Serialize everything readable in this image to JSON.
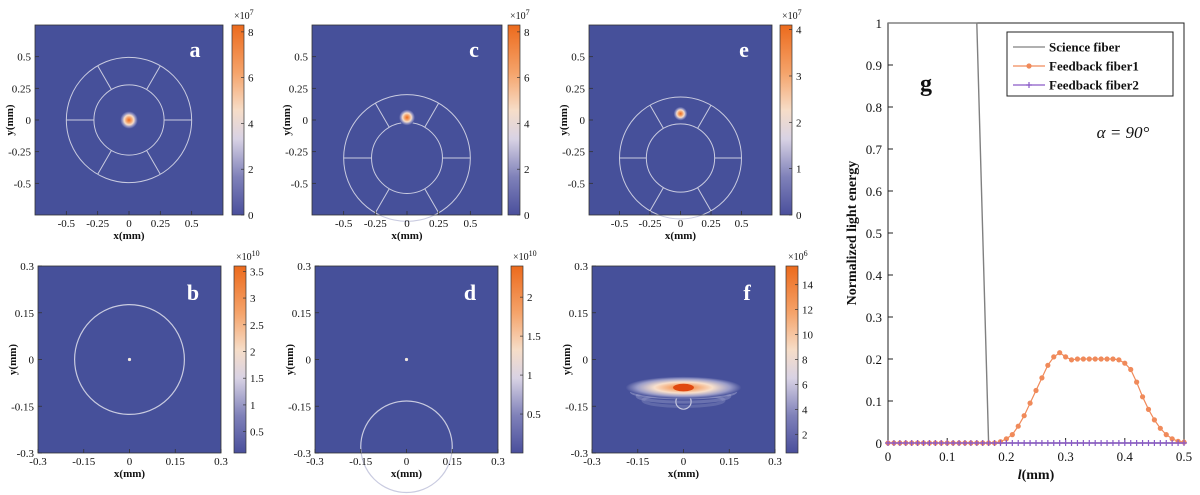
{
  "colors": {
    "background_dark": "#46509a",
    "ring": "#c9cbe0",
    "science": "#808080",
    "feedback1": "#f08a5a",
    "feedback2": "#8a5ac8"
  },
  "chart_data": [
    {
      "type": "heatmap",
      "panel": "a",
      "label": "a",
      "xlabel": "x(mm)",
      "ylabel": "y(mm)",
      "xlim": [
        -0.75,
        0.75
      ],
      "ylim": [
        -0.75,
        0.75
      ],
      "xticks": [
        -0.5,
        -0.25,
        0,
        0.25,
        0.5
      ],
      "xtick_labels": [
        "-0.5",
        "-0.25",
        "0",
        "0.25",
        "0.5"
      ],
      "yticks": [
        0.5,
        0.25,
        0,
        -0.25,
        -0.5
      ],
      "ytick_labels": [
        "0.5",
        "0.25",
        "0",
        "-0.25",
        "-0.5"
      ],
      "spot": {
        "x": 0,
        "y": 0,
        "radius": 0.05
      },
      "fiber_inner_radius": 0.28,
      "fiber_outer_radius": 0.5,
      "fiber_center": [
        0,
        0
      ],
      "colorbar": {
        "multiplier": "×10^7",
        "min": 0,
        "max": 8.3,
        "ticks": [
          0,
          2,
          4,
          6,
          8
        ],
        "tick_labels": [
          "0",
          "2",
          "4",
          "6",
          "8"
        ]
      }
    },
    {
      "type": "heatmap",
      "panel": "c",
      "label": "c",
      "xlabel": "x(mm)",
      "ylabel": "y(mm)",
      "xlim": [
        -0.75,
        0.75
      ],
      "ylim": [
        -0.75,
        0.75
      ],
      "xticks": [
        -0.5,
        -0.25,
        0,
        0.25,
        0.5
      ],
      "xtick_labels": [
        "-0.5",
        "-0.25",
        "0",
        "0.25",
        "0.5"
      ],
      "yticks": [
        0.5,
        0.25,
        0,
        -0.25,
        -0.5
      ],
      "ytick_labels": [
        "0.5",
        "0.25",
        "0",
        "-0.25",
        "-0.5"
      ],
      "spot": {
        "x": 0,
        "y": 0.02,
        "radius": 0.045
      },
      "fiber_inner_radius": 0.28,
      "fiber_outer_radius": 0.5,
      "fiber_center": [
        0,
        -0.3
      ],
      "colorbar": {
        "multiplier": "×10^7",
        "min": 0,
        "max": 8.3,
        "ticks": [
          0,
          2,
          4,
          6,
          8
        ],
        "tick_labels": [
          "0",
          "2",
          "4",
          "6",
          "8"
        ]
      }
    },
    {
      "type": "heatmap",
      "panel": "e",
      "label": "e",
      "xlabel": "x(mm)",
      "ylabel": "y(mm)",
      "xlim": [
        -0.75,
        0.75
      ],
      "ylim": [
        -0.75,
        0.75
      ],
      "xticks": [
        -0.5,
        -0.25,
        0,
        0.25,
        0.5
      ],
      "xtick_labels": [
        "-0.5",
        "-0.25",
        "0",
        "0.25",
        "0.5"
      ],
      "yticks": [
        0.5,
        0.25,
        0,
        -0.25,
        -0.5
      ],
      "ytick_labels": [
        "0.5",
        "0.25",
        "0",
        "-0.25",
        "-0.5"
      ],
      "spot": {
        "x": 0,
        "y": 0.05,
        "radius": 0.04
      },
      "fiber_inner_radius": 0.28,
      "fiber_outer_radius": 0.5,
      "fiber_center": [
        0,
        -0.3
      ],
      "colorbar": {
        "multiplier": "×10^7",
        "min": 0,
        "max": 4.1,
        "ticks": [
          0,
          1,
          2,
          3,
          4
        ],
        "tick_labels": [
          "0",
          "1",
          "2",
          "3",
          "4"
        ]
      }
    },
    {
      "type": "heatmap",
      "panel": "b",
      "label": "b",
      "xlabel": "x(mm)",
      "ylabel": "y(mm)",
      "xlim": [
        -0.3,
        0.3
      ],
      "ylim": [
        -0.3,
        0.3
      ],
      "xticks": [
        -0.3,
        -0.15,
        0,
        0.15,
        0.3
      ],
      "xtick_labels": [
        "-0.3",
        "-0.15",
        "0",
        "0.15",
        "0.3"
      ],
      "yticks": [
        0.3,
        0.15,
        0,
        -0.15,
        -0.3
      ],
      "ytick_labels": [
        "0.3",
        "0.15",
        "0",
        "-0.15",
        "-0.3"
      ],
      "spot": {
        "x": 0,
        "y": 0,
        "radius": 0.004
      },
      "circle": {
        "cx": 0,
        "cy": 0,
        "r": 0.18
      },
      "colorbar": {
        "multiplier": "×10^10",
        "min": 0.1,
        "max": 3.6,
        "ticks": [
          0.5,
          1,
          1.5,
          2,
          2.5,
          3,
          3.5
        ],
        "tick_labels": [
          "0.5",
          "1",
          "1.5",
          "2",
          "2.5",
          "3",
          "3.5"
        ]
      }
    },
    {
      "type": "heatmap",
      "panel": "d",
      "label": "d",
      "xlabel": "x(mm)",
      "ylabel": "y(mm)",
      "xlim": [
        -0.3,
        0.3
      ],
      "ylim": [
        -0.3,
        0.3
      ],
      "xticks": [
        -0.3,
        -0.15,
        0,
        0.15,
        0.3
      ],
      "xtick_labels": [
        "-0.3",
        "-0.15",
        "0",
        "0.15",
        "0.3"
      ],
      "yticks": [
        0.3,
        0.15,
        0,
        -0.15,
        -0.3
      ],
      "ytick_labels": [
        "0.3",
        "0.15",
        "0",
        "-0.15",
        "-0.3"
      ],
      "spot": {
        "x": 0,
        "y": 0,
        "radius": 0.004
      },
      "circle": {
        "cx": 0,
        "cy": -0.28,
        "r": 0.15
      },
      "colorbar": {
        "multiplier": "×10^10",
        "min": 0,
        "max": 2.4,
        "ticks": [
          0.5,
          1,
          1.5,
          2
        ],
        "tick_labels": [
          "0.5",
          "1",
          "1.5",
          "2"
        ]
      }
    },
    {
      "type": "heatmap",
      "panel": "f",
      "label": "f",
      "xlabel": "x(mm)",
      "ylabel": "y(mm)",
      "xlim": [
        -0.3,
        0.3
      ],
      "ylim": [
        -0.3,
        0.3
      ],
      "xticks": [
        -0.3,
        -0.15,
        0,
        0.15,
        0.3
      ],
      "xtick_labels": [
        "-0.3",
        "-0.15",
        "0",
        "0.15",
        "0.3"
      ],
      "yticks": [
        0.3,
        0.15,
        0,
        -0.15,
        -0.3
      ],
      "ytick_labels": [
        "0.3",
        "0.15",
        "0",
        "-0.15",
        "-0.3"
      ],
      "pattern": {
        "center_x": 0,
        "center_y": -0.09,
        "half_width": 0.19,
        "half_height": 0.035,
        "fringe_spacing": 0.025
      },
      "circle": {
        "cx": 0,
        "cy": -0.135,
        "r": 0.025
      },
      "colorbar": {
        "multiplier": "×10^6",
        "min": 0.5,
        "max": 15.5,
        "ticks": [
          2,
          4,
          6,
          8,
          10,
          12,
          14
        ],
        "tick_labels": [
          "2",
          "4",
          "6",
          "8",
          "10",
          "12",
          "14"
        ]
      }
    },
    {
      "type": "line",
      "panel": "g",
      "label": "g",
      "xlabel": "l(mm)",
      "ylabel": "Normalized light energy",
      "xlim": [
        0,
        0.5
      ],
      "ylim": [
        0,
        1
      ],
      "xticks": [
        0,
        0.1,
        0.2,
        0.3,
        0.4,
        0.5
      ],
      "xtick_labels": [
        "0",
        "0.1",
        "0.2",
        "0.3",
        "0.4",
        "0.5"
      ],
      "yticks": [
        0,
        0.1,
        0.2,
        0.3,
        0.4,
        0.5,
        0.6,
        0.7,
        0.8,
        0.9,
        1
      ],
      "ytick_labels": [
        "0",
        "0.1",
        "0.2",
        "0.3",
        "0.4",
        "0.5",
        "0.6",
        "0.7",
        "0.8",
        "0.9",
        "1"
      ],
      "annotation": "α = 90°",
      "series": [
        {
          "name": "Science fiber",
          "marker": "none",
          "x": [
            0,
            0.15,
            0.17,
            0.5
          ],
          "y": [
            1,
            1,
            0,
            0
          ]
        },
        {
          "name": "Feedback fiber1",
          "marker": "dot",
          "x": [
            0,
            0.01,
            0.02,
            0.03,
            0.04,
            0.05,
            0.06,
            0.07,
            0.08,
            0.09,
            0.1,
            0.11,
            0.12,
            0.13,
            0.14,
            0.15,
            0.16,
            0.17,
            0.18,
            0.19,
            0.2,
            0.21,
            0.22,
            0.23,
            0.24,
            0.25,
            0.26,
            0.27,
            0.28,
            0.29,
            0.3,
            0.31,
            0.32,
            0.33,
            0.34,
            0.35,
            0.36,
            0.37,
            0.38,
            0.39,
            0.4,
            0.41,
            0.42,
            0.43,
            0.44,
            0.45,
            0.46,
            0.47,
            0.48,
            0.49,
            0.5
          ],
          "y": [
            0,
            0,
            0,
            0,
            0,
            0,
            0,
            0,
            0,
            0,
            0,
            0,
            0,
            0,
            0,
            0,
            0,
            0,
            0,
            0.003,
            0.01,
            0.02,
            0.04,
            0.065,
            0.095,
            0.125,
            0.155,
            0.185,
            0.205,
            0.215,
            0.205,
            0.198,
            0.2,
            0.2,
            0.2,
            0.2,
            0.2,
            0.2,
            0.2,
            0.198,
            0.19,
            0.175,
            0.145,
            0.11,
            0.08,
            0.055,
            0.035,
            0.02,
            0.01,
            0.004,
            0.002
          ]
        },
        {
          "name": "Feedback fiber2",
          "marker": "plus",
          "x": [
            0,
            0.01,
            0.02,
            0.03,
            0.04,
            0.05,
            0.06,
            0.07,
            0.08,
            0.09,
            0.1,
            0.11,
            0.12,
            0.13,
            0.14,
            0.15,
            0.16,
            0.17,
            0.18,
            0.19,
            0.2,
            0.21,
            0.22,
            0.23,
            0.24,
            0.25,
            0.26,
            0.27,
            0.28,
            0.29,
            0.3,
            0.31,
            0.32,
            0.33,
            0.34,
            0.35,
            0.36,
            0.37,
            0.38,
            0.39,
            0.4,
            0.41,
            0.42,
            0.43,
            0.44,
            0.45,
            0.46,
            0.47,
            0.48,
            0.49,
            0.5
          ],
          "y": [
            0,
            0,
            0,
            0,
            0,
            0,
            0,
            0,
            0,
            0,
            0,
            0,
            0,
            0,
            0,
            0,
            0,
            0,
            0,
            0,
            0,
            0,
            0,
            0,
            0,
            0,
            0,
            0,
            0,
            0,
            0,
            0,
            0,
            0,
            0,
            0,
            0,
            0,
            0,
            0,
            0,
            0,
            0,
            0,
            0,
            0,
            0,
            0,
            0,
            0,
            0
          ]
        }
      ],
      "legend_position": "top-right"
    }
  ]
}
